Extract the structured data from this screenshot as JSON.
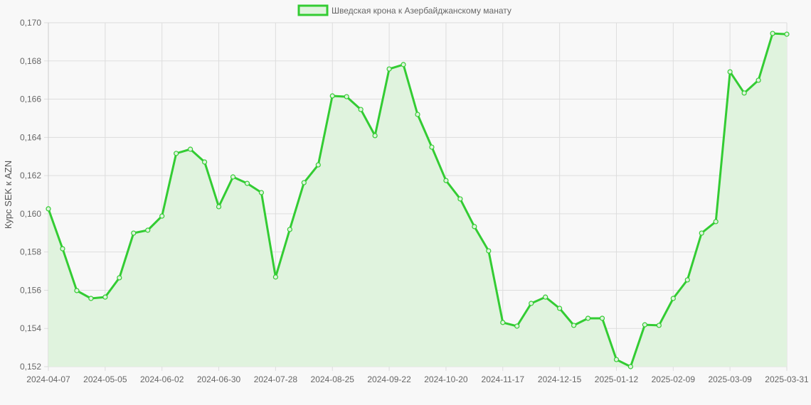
{
  "chart_data": {
    "type": "area",
    "legend": "top",
    "grid": true,
    "ylabel": "Курс SEK к AZN",
    "xlabel": "",
    "ylim": [
      0.152,
      0.17
    ],
    "y_ticks": [
      "0,152",
      "0,154",
      "0,156",
      "0,158",
      "0,160",
      "0,162",
      "0,164",
      "0,166",
      "0,168",
      "0,170"
    ],
    "x_tick_labels": [
      "2024-04-07",
      "2024-05-05",
      "2024-06-02",
      "2024-06-30",
      "2024-07-28",
      "2024-08-25",
      "2024-09-22",
      "2024-10-20",
      "2024-11-17",
      "2024-12-15",
      "2025-01-12",
      "2025-02-09",
      "2025-03-09",
      "2025-03-31"
    ],
    "x": [
      "2024-04-07",
      "2024-04-14",
      "2024-04-21",
      "2024-04-28",
      "2024-05-05",
      "2024-05-12",
      "2024-05-19",
      "2024-05-26",
      "2024-06-02",
      "2024-06-09",
      "2024-06-16",
      "2024-06-23",
      "2024-06-30",
      "2024-07-07",
      "2024-07-14",
      "2024-07-21",
      "2024-07-28",
      "2024-08-04",
      "2024-08-11",
      "2024-08-18",
      "2024-08-25",
      "2024-09-01",
      "2024-09-08",
      "2024-09-15",
      "2024-09-22",
      "2024-09-29",
      "2024-10-06",
      "2024-10-13",
      "2024-10-20",
      "2024-10-27",
      "2024-11-03",
      "2024-11-10",
      "2024-11-17",
      "2024-11-24",
      "2024-12-01",
      "2024-12-08",
      "2024-12-15",
      "2024-12-22",
      "2024-12-29",
      "2025-01-05",
      "2025-01-12",
      "2025-01-19",
      "2025-01-26",
      "2025-02-02",
      "2025-02-09",
      "2025-02-16",
      "2025-02-23",
      "2025-03-02",
      "2025-03-09",
      "2025-03-16",
      "2025-03-23",
      "2025-03-30",
      "2025-03-31"
    ],
    "series": [
      {
        "name": "Шведская крона к Азербайджанскому манату",
        "color": "#33cc33",
        "fill": "#e0f3de",
        "values": [
          0.16026,
          0.15817,
          0.15598,
          0.15557,
          0.15564,
          0.15665,
          0.15899,
          0.15914,
          0.15988,
          0.16316,
          0.16338,
          0.16271,
          0.16037,
          0.16193,
          0.16159,
          0.16111,
          0.15669,
          0.15918,
          0.16163,
          0.16256,
          0.16617,
          0.16613,
          0.16546,
          0.16409,
          0.16758,
          0.16781,
          0.1652,
          0.16349,
          0.16174,
          0.16078,
          0.15933,
          0.15806,
          0.15431,
          0.15412,
          0.15531,
          0.15564,
          0.15505,
          0.15416,
          0.15453,
          0.15453,
          0.15237,
          0.152,
          0.15419,
          0.15416,
          0.15557,
          0.15654,
          0.15899,
          0.15959,
          0.16743,
          0.16632,
          0.16699,
          0.16944,
          0.1694
        ]
      }
    ]
  }
}
